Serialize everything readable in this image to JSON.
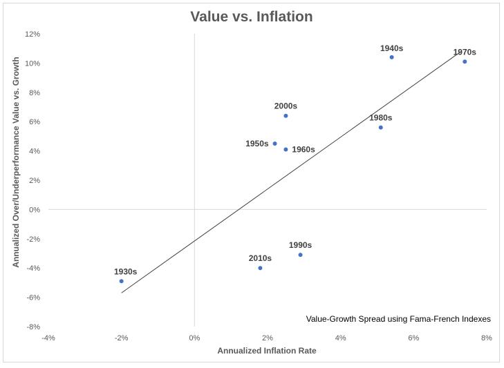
{
  "chart_data": {
    "type": "scatter",
    "title": "Value vs. Inflation",
    "xlabel": "Annualized Inflation Rate",
    "ylabel": "Annualized Over/Underperformance Value vs. Growth",
    "annotation": "Value-Growth Spread using Fama-French Indexes",
    "xlim": [
      -4,
      8
    ],
    "ylim": [
      -8,
      12
    ],
    "x_ticks": [
      "-4%",
      "-2%",
      "0%",
      "2%",
      "4%",
      "6%",
      "8%"
    ],
    "y_ticks": [
      "-8%",
      "-6%",
      "-4%",
      "-2%",
      "0%",
      "2%",
      "4%",
      "6%",
      "8%",
      "10%",
      "12%"
    ],
    "grid": false,
    "marker_color": "#4472c4",
    "trendline": {
      "x": [
        -2.0,
        7.3
      ],
      "y": [
        -5.7,
        10.8
      ]
    },
    "points": [
      {
        "label": "1930s",
        "x": -2.0,
        "y": -4.9
      },
      {
        "label": "1940s",
        "x": 5.4,
        "y": 10.4
      },
      {
        "label": "1950s",
        "x": 2.2,
        "y": 4.5
      },
      {
        "label": "1960s",
        "x": 2.5,
        "y": 4.1
      },
      {
        "label": "1970s",
        "x": 7.4,
        "y": 10.1
      },
      {
        "label": "1980s",
        "x": 5.1,
        "y": 5.6
      },
      {
        "label": "1990s",
        "x": 2.9,
        "y": -3.1
      },
      {
        "label": "2000s",
        "x": 2.5,
        "y": 6.4
      },
      {
        "label": "2010s",
        "x": 1.8,
        "y": -4.0
      }
    ]
  }
}
